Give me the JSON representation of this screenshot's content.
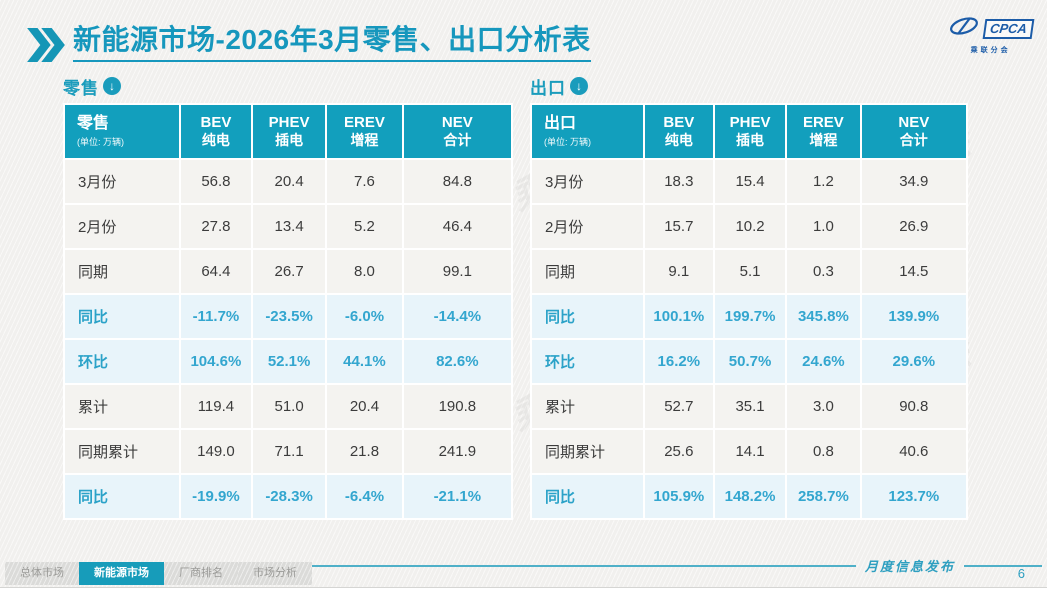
{
  "title": {
    "text": "新能源市场-2026年3月零售、出口分析表"
  },
  "logo": {
    "name": "CPCA",
    "subtext": "乘联分会"
  },
  "watermark": "CPCA 乘联分会",
  "colors": {
    "accent_teal": "#129FBD",
    "title_teal": "#1697BD",
    "highlight_bg": "#E8F4FA",
    "highlight_text": "#33A6CF",
    "logo_blue": "#1C5CA8"
  },
  "tables": [
    {
      "section_label": "零售",
      "corner_label": "零售",
      "unit": "(单位: 万辆)",
      "columns": [
        {
          "en": "BEV",
          "zh": "纯电"
        },
        {
          "en": "PHEV",
          "zh": "插电"
        },
        {
          "en": "EREV",
          "zh": "增程"
        },
        {
          "en": "NEV",
          "zh": "合计"
        }
      ],
      "rows": [
        {
          "label": "3月份",
          "values": [
            "56.8",
            "20.4",
            "7.6",
            "84.8"
          ],
          "highlight": false
        },
        {
          "label": "2月份",
          "values": [
            "27.8",
            "13.4",
            "5.2",
            "46.4"
          ],
          "highlight": false
        },
        {
          "label": "同期",
          "values": [
            "64.4",
            "26.7",
            "8.0",
            "99.1"
          ],
          "highlight": false
        },
        {
          "label": "同比",
          "values": [
            "-11.7%",
            "-23.5%",
            "-6.0%",
            "-14.4%"
          ],
          "highlight": true
        },
        {
          "label": "环比",
          "values": [
            "104.6%",
            "52.1%",
            "44.1%",
            "82.6%"
          ],
          "highlight": true
        },
        {
          "label": "累计",
          "values": [
            "119.4",
            "51.0",
            "20.4",
            "190.8"
          ],
          "highlight": false
        },
        {
          "label": "同期累计",
          "values": [
            "149.0",
            "71.1",
            "21.8",
            "241.9"
          ],
          "highlight": false
        },
        {
          "label": "同比",
          "values": [
            "-19.9%",
            "-28.3%",
            "-6.4%",
            "-21.1%"
          ],
          "highlight": true
        }
      ]
    },
    {
      "section_label": "出口",
      "corner_label": "出口",
      "unit": "(单位: 万辆)",
      "columns": [
        {
          "en": "BEV",
          "zh": "纯电"
        },
        {
          "en": "PHEV",
          "zh": "插电"
        },
        {
          "en": "EREV",
          "zh": "增程"
        },
        {
          "en": "NEV",
          "zh": "合计"
        }
      ],
      "rows": [
        {
          "label": "3月份",
          "values": [
            "18.3",
            "15.4",
            "1.2",
            "34.9"
          ],
          "highlight": false
        },
        {
          "label": "2月份",
          "values": [
            "15.7",
            "10.2",
            "1.0",
            "26.9"
          ],
          "highlight": false
        },
        {
          "label": "同期",
          "values": [
            "9.1",
            "5.1",
            "0.3",
            "14.5"
          ],
          "highlight": false
        },
        {
          "label": "同比",
          "values": [
            "100.1%",
            "199.7%",
            "345.8%",
            "139.9%"
          ],
          "highlight": true
        },
        {
          "label": "环比",
          "values": [
            "16.2%",
            "50.7%",
            "24.6%",
            "29.6%"
          ],
          "highlight": true
        },
        {
          "label": "累计",
          "values": [
            "52.7",
            "35.1",
            "3.0",
            "90.8"
          ],
          "highlight": false
        },
        {
          "label": "同期累计",
          "values": [
            "25.6",
            "14.1",
            "0.8",
            "40.6"
          ],
          "highlight": false
        },
        {
          "label": "同比",
          "values": [
            "105.9%",
            "148.2%",
            "258.7%",
            "123.7%"
          ],
          "highlight": true
        }
      ]
    }
  ],
  "footer": {
    "caption": "月度信息发布",
    "page": "6",
    "tabs": [
      {
        "label": "总体市场",
        "active": false
      },
      {
        "label": "新能源市场",
        "active": true
      },
      {
        "label": "厂商排名",
        "active": false
      },
      {
        "label": "市场分析",
        "active": false
      }
    ]
  }
}
